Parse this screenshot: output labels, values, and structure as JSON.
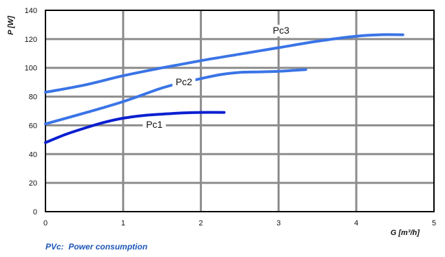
{
  "caption": "PVc:  Power consumption",
  "colors": {
    "grid": "#8c8c8c",
    "axis": "#000000",
    "pc1": "#0a1fd0",
    "pc2": "#3a74e6",
    "pc3": "#3a74e6",
    "caption": "#1d56b8"
  },
  "chart_data": {
    "type": "line",
    "title": "",
    "xlabel": "G [m³/h]",
    "ylabel": "P [W]",
    "xlim": [
      0,
      5
    ],
    "ylim": [
      0,
      140
    ],
    "xticks": [
      "0",
      "1",
      "2",
      "3",
      "4",
      "5"
    ],
    "yticks": [
      "0",
      "20",
      "40",
      "60",
      "80",
      "100",
      "120",
      "140"
    ],
    "grid": true,
    "series": [
      {
        "name": "Pc1",
        "x": [
          0,
          0.25,
          0.5,
          0.75,
          1.0,
          1.25,
          1.5,
          1.75,
          2.0,
          2.3
        ],
        "y": [
          48,
          53.5,
          58,
          62,
          65,
          66.8,
          67.8,
          68.6,
          69,
          69
        ]
      },
      {
        "name": "Pc2",
        "x": [
          0,
          0.5,
          1.0,
          1.5,
          1.75,
          2.0,
          2.25,
          2.5,
          2.75,
          3.0,
          3.35
        ],
        "y": [
          61,
          68.5,
          76.5,
          86,
          89.5,
          92.5,
          95.3,
          96.8,
          97.2,
          97.6,
          98.8
        ]
      },
      {
        "name": "Pc3",
        "x": [
          0,
          0.5,
          1.0,
          1.5,
          2.0,
          2.5,
          3.0,
          3.5,
          4.0,
          4.3,
          4.6
        ],
        "y": [
          83,
          88,
          94.5,
          100,
          105,
          109.5,
          114,
          118.5,
          122,
          123,
          123
        ]
      }
    ]
  }
}
